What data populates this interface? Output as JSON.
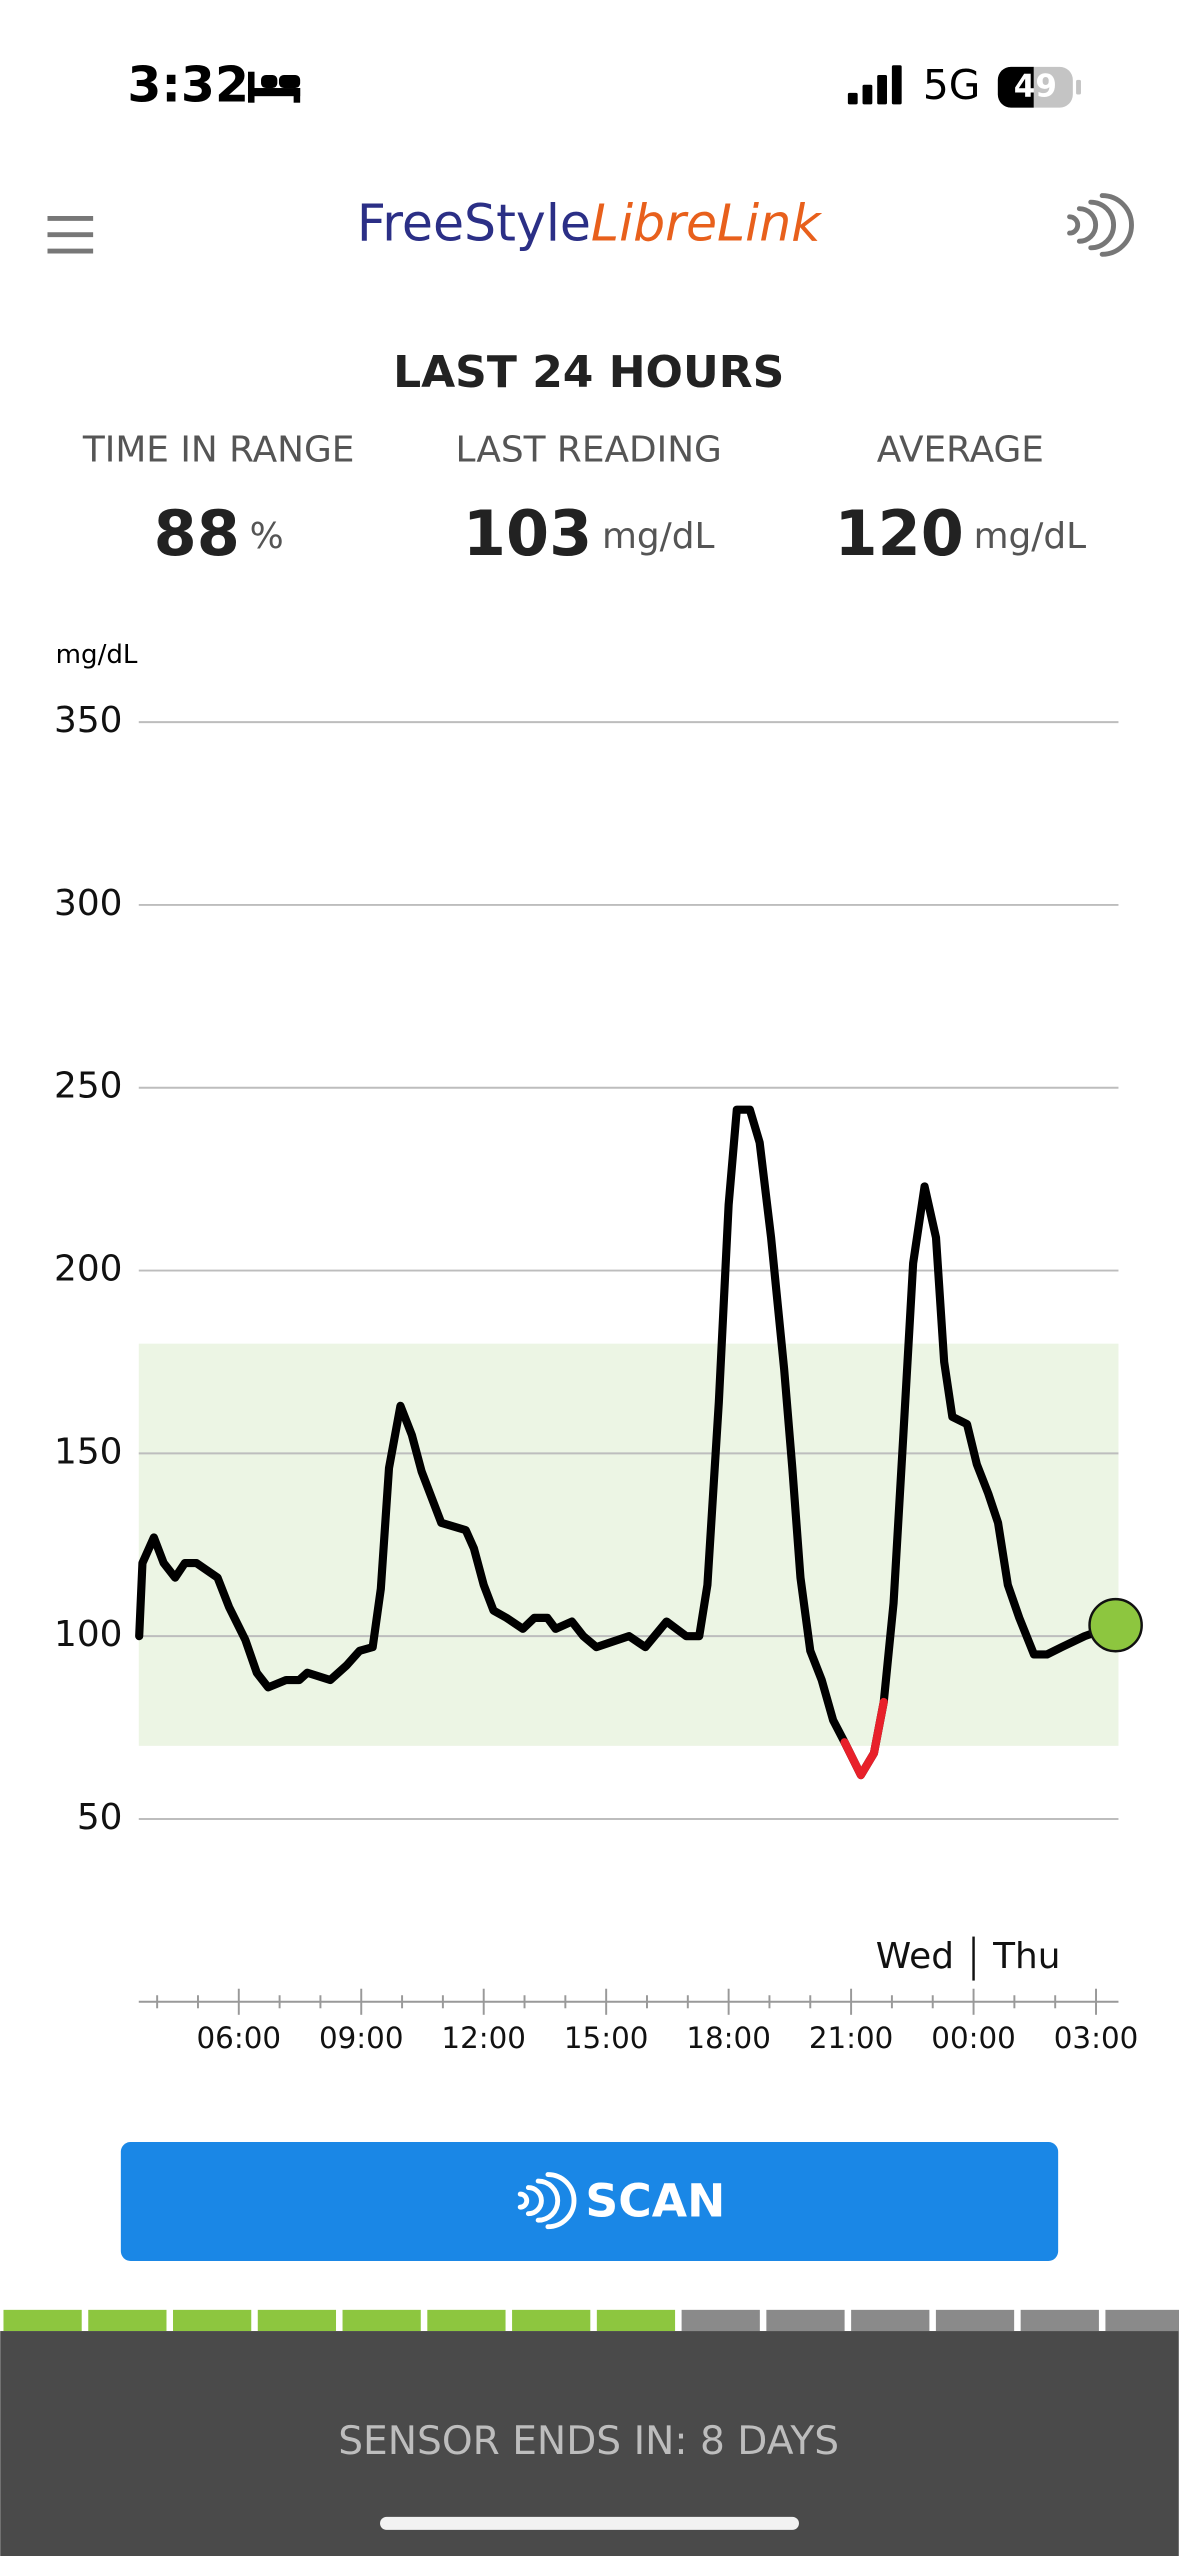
{
  "status_bar": {
    "time": "3:32",
    "network": "5G",
    "battery": "49"
  },
  "header": {
    "brand_1": "FreeStyle",
    "brand_2": "LibreLink"
  },
  "summary": {
    "title": "LAST 24 HOURS",
    "stats": [
      {
        "label": "TIME IN RANGE",
        "value": "88",
        "unit": "%"
      },
      {
        "label": "LAST READING",
        "value": "103",
        "unit": "mg/dL"
      },
      {
        "label": "AVERAGE",
        "value": "120",
        "unit": "mg/dL"
      }
    ]
  },
  "chart_data": {
    "type": "line",
    "y_label": "mg/dL",
    "x": [
      3.56,
      3.64,
      3.92,
      4.16,
      4.44,
      4.68,
      4.96,
      5.48,
      5.76,
      6.16,
      6.44,
      6.72,
      7.16,
      7.48,
      7.68,
      8.24,
      8.64,
      8.96,
      9.28,
      9.48,
      9.68,
      9.96,
      10.24,
      10.48,
      10.96,
      11.56,
      11.76,
      12.0,
      12.24,
      12.56,
      12.96,
      13.24,
      13.56,
      13.76,
      14.16,
      14.44,
      14.76,
      15.56,
      15.96,
      16.48,
      16.96,
      17.28,
      17.48,
      17.76,
      18.0,
      18.2,
      18.52,
      18.76,
      19.04,
      19.36,
      19.56,
      19.76,
      20.0,
      20.28,
      20.56,
      20.84,
      21.24,
      21.56,
      21.8,
      22.04,
      22.28,
      22.52,
      22.8,
      23.08,
      23.28,
      23.48,
      23.84,
      24.08,
      24.36,
      24.6,
      24.84,
      25.12,
      25.48,
      25.8,
      26.16,
      26.72,
      27.48
    ],
    "values": [
      100,
      120,
      127,
      120,
      116,
      120,
      120,
      116,
      108,
      99,
      90,
      86,
      88,
      88,
      90,
      88,
      92,
      96,
      97,
      113,
      146,
      163,
      155,
      145,
      131,
      129,
      124,
      114,
      107,
      105,
      102,
      105,
      105,
      102,
      104,
      100,
      97,
      100,
      97,
      104,
      100,
      100,
      114,
      164,
      218,
      244,
      244,
      235,
      209,
      173,
      146,
      116,
      96,
      88,
      77,
      71,
      62,
      68,
      82,
      109,
      155,
      202,
      223,
      209,
      175,
      160,
      158,
      147,
      139,
      131,
      114,
      105,
      95,
      95,
      97,
      100,
      103
    ],
    "color": "#000000",
    "low_color": "#e8202a",
    "last_point_color": "#8dc63f",
    "target_range": [
      70,
      180
    ],
    "target_color": "#ecf5e4",
    "xlim": [
      3.55,
      27.55
    ],
    "xticks": [
      {
        "value": 6,
        "label": "06:00"
      },
      {
        "value": 9,
        "label": "09:00"
      },
      {
        "value": 12,
        "label": "12:00"
      },
      {
        "value": 15,
        "label": "15:00"
      },
      {
        "value": 18,
        "label": "18:00"
      },
      {
        "value": 21,
        "label": "21:00"
      },
      {
        "value": 24,
        "label": "00:00"
      },
      {
        "value": 27,
        "label": "03:00"
      }
    ],
    "xminorticks": [
      4,
      5,
      7,
      8,
      10,
      11,
      13,
      14,
      16,
      17,
      19,
      20,
      22,
      23,
      25,
      26
    ],
    "ylim": [
      0,
      350
    ],
    "yticks": [
      50,
      100,
      150,
      200,
      250,
      300,
      350
    ],
    "grid": true,
    "day_labels": [
      "Wed",
      "Thu"
    ],
    "day_divider_x": 24
  },
  "scan_button": {
    "label": "SCAN"
  },
  "footer": {
    "text": "SENSOR ENDS IN: 8 DAYS"
  }
}
